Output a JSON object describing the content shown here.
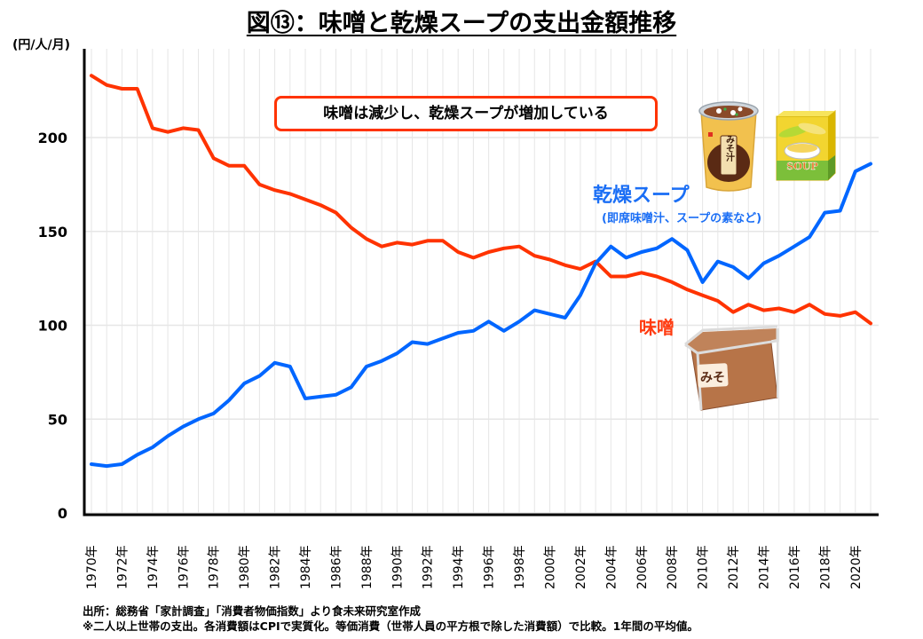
{
  "title": "図⑬：味噌と乾燥スープの支出金額推移",
  "unit_label": "(円/人/月)",
  "callout": "味噌は減少し、乾燥スープが増加している",
  "labels": {
    "soup": "乾燥スープ",
    "soup_sub": "(即席味噌汁、スープの素など)",
    "miso": "味噌"
  },
  "illustrations": {
    "cup_label": "みそ汁",
    "soup_box_label": "SOUP",
    "miso_tub_label": "みそ"
  },
  "source": {
    "line1": "出所：総務省「家計調査」「消費者物価指数」より食未来研究室作成",
    "line2": "※二人以上世帯の支出。各消費額はCPIで実質化。等価消費（世帯人員の平方根で除した消費額）で比較。1年間の平均値。"
  },
  "colors": {
    "miso": "#ff3300",
    "soup": "#0066ff",
    "grid": "#e6e6e6",
    "axis": "#000000"
  },
  "chart_data": {
    "type": "line",
    "title": "図⑬：味噌と乾燥スープの支出金額推移",
    "xlabel": "",
    "ylabel": "(円/人/月)",
    "ylim": [
      0,
      240
    ],
    "yticks": [
      0,
      50,
      100,
      150,
      200
    ],
    "grid": true,
    "x": [
      1970,
      1971,
      1972,
      1973,
      1974,
      1975,
      1976,
      1977,
      1978,
      1979,
      1980,
      1981,
      1982,
      1983,
      1984,
      1985,
      1986,
      1987,
      1988,
      1989,
      1990,
      1991,
      1992,
      1993,
      1994,
      1995,
      1996,
      1997,
      1998,
      1999,
      2000,
      2001,
      2002,
      2003,
      2004,
      2005,
      2006,
      2007,
      2008,
      2009,
      2010,
      2011,
      2012,
      2013,
      2014,
      2015,
      2016,
      2017,
      2018,
      2019,
      2020,
      2021
    ],
    "xtick_labels": [
      "1970年",
      "1972年",
      "1974年",
      "1976年",
      "1978年",
      "1980年",
      "1982年",
      "1984年",
      "1986年",
      "1988年",
      "1990年",
      "1992年",
      "1994年",
      "1996年",
      "1998年",
      "2000年",
      "2002年",
      "2004年",
      "2006年",
      "2008年",
      "2010年",
      "2012年",
      "2014年",
      "2016年",
      "2018年",
      "2020年"
    ],
    "series": [
      {
        "name": "味噌",
        "color": "#ff3300",
        "values": [
          233,
          228,
          226,
          226,
          205,
          203,
          205,
          204,
          189,
          185,
          185,
          175,
          172,
          170,
          167,
          164,
          160,
          152,
          146,
          142,
          144,
          143,
          145,
          145,
          139,
          136,
          139,
          141,
          142,
          137,
          135,
          132,
          130,
          134,
          126,
          126,
          128,
          126,
          123,
          119,
          116,
          113,
          107,
          111,
          108,
          109,
          107,
          111,
          106,
          105,
          107,
          101
        ]
      },
      {
        "name": "乾燥スープ",
        "color": "#0066ff",
        "values": [
          26,
          25,
          26,
          31,
          35,
          41,
          46,
          50,
          53,
          60,
          69,
          73,
          80,
          78,
          61,
          62,
          63,
          67,
          78,
          81,
          85,
          91,
          90,
          93,
          96,
          97,
          102,
          97,
          102,
          108,
          106,
          104,
          116,
          133,
          142,
          136,
          139,
          141,
          146,
          140,
          123,
          134,
          131,
          125,
          133,
          137,
          142,
          147,
          160,
          161,
          182,
          186
        ]
      }
    ]
  }
}
